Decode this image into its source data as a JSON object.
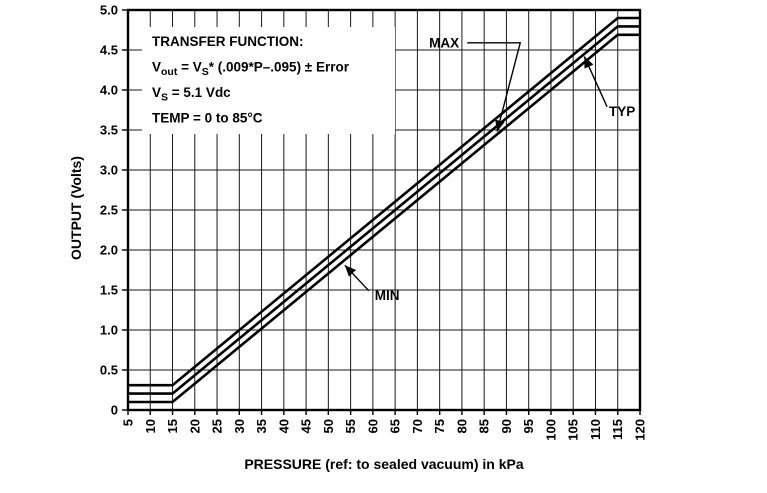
{
  "chart_data": {
    "type": "line",
    "xlabel": "PRESSURE (ref: to sealed vacuum) in kPa",
    "ylabel": "OUTPUT (Volts)",
    "xlim": [
      5,
      120
    ],
    "ylim": [
      0,
      5
    ],
    "grid": true,
    "grid_color": "#1a1a1a",
    "line_color": "#000000",
    "xticks": [
      5,
      10,
      15,
      20,
      25,
      30,
      35,
      40,
      45,
      50,
      55,
      60,
      65,
      70,
      75,
      80,
      85,
      90,
      95,
      100,
      105,
      110,
      115,
      120
    ],
    "xtick_labels": [
      "5",
      "10",
      "15",
      "20",
      "25",
      "30",
      "35",
      "40",
      "45",
      "50",
      "55",
      "60",
      "65",
      "70",
      "75",
      "80",
      "85",
      "90",
      "95",
      "100",
      "105",
      "110",
      "115",
      "120"
    ],
    "yticks": [
      0,
      0.5,
      1,
      1.5,
      2,
      2.5,
      3,
      3.5,
      4,
      4.5,
      5
    ],
    "ytick_labels": [
      "0",
      "0.5",
      "1.0",
      "1.5",
      "2.0",
      "2.5",
      "3.0",
      "3.5",
      "4.0",
      "4.5",
      "5.0"
    ],
    "series": [
      {
        "name": "MAX",
        "points": [
          [
            5,
            0.31
          ],
          [
            15,
            0.31
          ],
          [
            115,
            4.9
          ],
          [
            120,
            4.9
          ]
        ]
      },
      {
        "name": "TYP",
        "points": [
          [
            5,
            0.205
          ],
          [
            15,
            0.205
          ],
          [
            115,
            4.795
          ],
          [
            120,
            4.795
          ]
        ]
      },
      {
        "name": "MIN",
        "points": [
          [
            5,
            0.1
          ],
          [
            15,
            0.1
          ],
          [
            115,
            4.69
          ],
          [
            120,
            4.69
          ]
        ]
      }
    ],
    "info_box": {
      "lines": [
        [
          {
            "t": "TRANSFER FUNCTION:"
          }
        ],
        [
          {
            "t": "V"
          },
          {
            "t": "out",
            "sub": true
          },
          {
            "t": " = V"
          },
          {
            "t": "S",
            "sub": true
          },
          {
            "t": "* (.009*P–.095) ± Error"
          }
        ],
        [
          {
            "t": "V"
          },
          {
            "t": "S",
            "sub": true
          },
          {
            "t": " = 5.1 Vdc"
          }
        ],
        [
          {
            "t": "TEMP = 0 to 85°C"
          }
        ]
      ]
    },
    "annotations": [
      {
        "label": "MAX",
        "label_pos": [
          76,
          4.59
        ],
        "leader": [
          [
            81.2,
            4.59
          ],
          [
            93.1,
            4.59
          ],
          [
            87.9,
            3.48
          ]
        ]
      },
      {
        "label": "TYP",
        "label_pos": [
          116,
          3.73
        ],
        "leader": [
          [
            112.6,
            3.79
          ],
          [
            107.5,
            4.42
          ]
        ]
      },
      {
        "label": "MIN",
        "label_pos": [
          63.2,
          1.43
        ],
        "leader": [
          [
            59.1,
            1.49
          ],
          [
            53.7,
            1.81
          ]
        ]
      }
    ]
  }
}
